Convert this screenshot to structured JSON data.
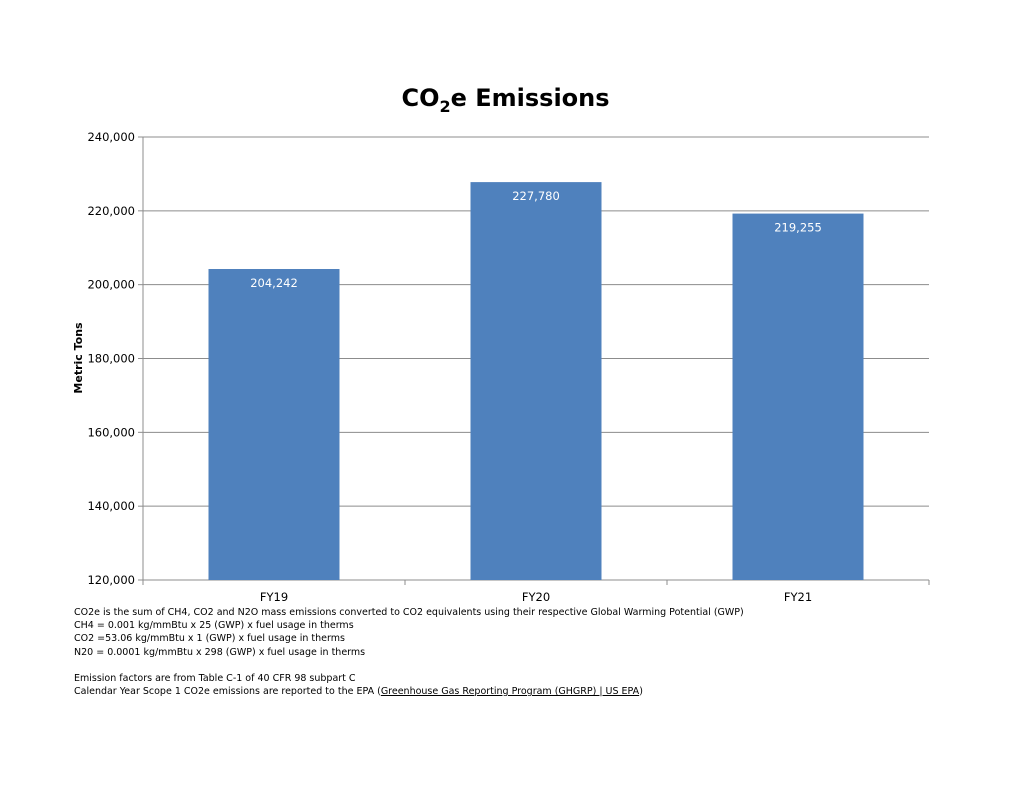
{
  "chart_data": {
    "type": "bar",
    "title": {
      "prefix": "CO",
      "subscript": "2",
      "suffix": "e Emissions"
    },
    "categories": [
      "FY19",
      "FY20",
      "FY21"
    ],
    "values": [
      204242,
      227780,
      219255
    ],
    "data_labels": [
      "204,242",
      "227,780",
      "219,255"
    ],
    "xlabel": "",
    "ylabel": "Metric Tons",
    "ylim": [
      120000,
      240000
    ],
    "yticks": [
      120000,
      140000,
      160000,
      180000,
      200000,
      220000,
      240000
    ],
    "ytick_labels": [
      "120,000",
      "140,000",
      "160,000",
      "180,000",
      "200,000",
      "220,000",
      "240,000"
    ],
    "grid": true,
    "legend": "none",
    "bar_color": "#4f81bd",
    "label_color": "#ffffff"
  },
  "notes": {
    "lines": [
      "CO2e is the sum of CH4, CO2 and N2O mass emissions converted to CO2 equivalents using their respective Global Warming Potential (GWP)",
      "CH4 = 0.001 kg/mmBtu x 25 (GWP) x fuel usage in therms",
      "CO2 =53.06 kg/mmBtu x 1 (GWP) x fuel usage in therms",
      "N20 = 0.0001 kg/mmBtu x 298 (GWP) x fuel usage in therms",
      "",
      "Emission factors are from Table C-1 of 40 CFR 98 subpart C"
    ],
    "epa_prefix": "Calendar Year Scope 1 CO2e emissions are reported to the EPA (",
    "epa_link": "Greenhouse Gas Reporting Program (GHGRP) | US EPA",
    "epa_suffix": ")"
  }
}
